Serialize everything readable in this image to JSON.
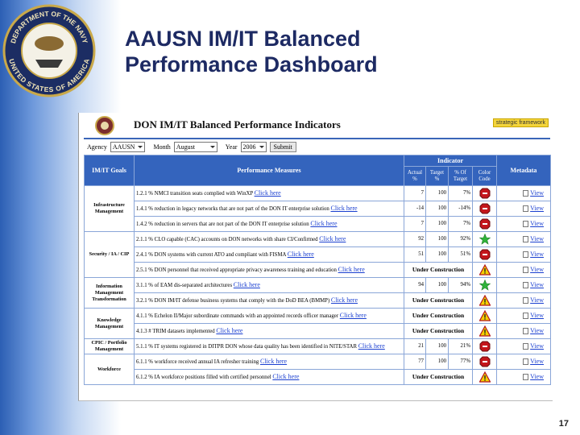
{
  "slide": {
    "title": "AAUSN IM/IT Balanced Performance Dashboard",
    "page_number": "17",
    "seal_text": [
      "DEPARTMENT OF THE NAVY",
      "UNITED STATES OF AMERICA"
    ]
  },
  "screen": {
    "heading": "DON IM/IT Balanced Performance Indicators",
    "framework_button": "strategic framework",
    "form": {
      "agency_label": "Agency",
      "agency": "AAUSN",
      "month_label": "Month",
      "month": "August",
      "year_label": "Year",
      "year": "2006",
      "submit": "Submit"
    },
    "table": {
      "headers": {
        "goals": "IM/IT Goals",
        "measures": "Performance Measures",
        "indicator": "Indicator",
        "actual": "Actual %",
        "target": "Target %",
        "percent_of_target": "% Of Target",
        "color_code": "Color Code",
        "metadata": "Metadata"
      },
      "goals": [
        {
          "label": "Infrastructure Management",
          "rows": [
            {
              "measure": "1.2.1 % NMCI transition seats complied with WinXP",
              "link": "Click here",
              "actual": "7",
              "target": "100",
              "percent": "7%",
              "status": "red",
              "metadata": "View"
            },
            {
              "measure": "1.4.1 % reduction in legacy networks that are not part of the DON IT enterprise solution",
              "link": "Click here",
              "actual": "-14",
              "target": "100",
              "percent": "-14%",
              "status": "red",
              "metadata": "View"
            },
            {
              "measure": "1.4.2 % reduction in servers that are not part of the DON IT enterprise solution",
              "link": "Click here",
              "actual": "7",
              "target": "100",
              "percent": "7%",
              "status": "red",
              "metadata": "View"
            }
          ]
        },
        {
          "label": "Security / IA / CIP",
          "rows": [
            {
              "measure": "2.1.1 % CLO capable (CAC) accounts on DON networks with share CI/Confirmed",
              "link": "Click here",
              "actual": "92",
              "target": "100",
              "percent": "92%",
              "status": "green",
              "metadata": "View"
            },
            {
              "measure": "2.4.1 % DON systems with current ATO and compliant with FISMA",
              "link": "Click here",
              "actual": "51",
              "target": "100",
              "percent": "51%",
              "status": "red",
              "metadata": "View"
            },
            {
              "measure": "2.5.1 % DON personnel that received appropriate privacy awareness training and education",
              "link": "Click here",
              "status_text": "Under Construction",
              "status": "warning",
              "metadata": "View"
            }
          ]
        },
        {
          "label": "Information Management Transformation",
          "rows": [
            {
              "measure": "3.1.1 % of EAM dis-separated architectures",
              "link": "Click here",
              "actual": "94",
              "target": "100",
              "percent": "94%",
              "status": "green",
              "metadata": "View"
            },
            {
              "measure": "3.2.1 % DON IM/IT defense business systems that comply with the DoD BEA (BMMP)",
              "link": "Click here",
              "status_text": "Under Construction",
              "status": "warning",
              "metadata": "View"
            }
          ]
        },
        {
          "label": "Knowledge Management",
          "rows": [
            {
              "measure": "4.1.1 % Echelon II/Major subordinate commands with an appointed records officer manager",
              "link": "Click here",
              "status_text": "Under Construction",
              "status": "warning",
              "metadata": "View"
            },
            {
              "measure": "4.1.3 # TRIM datasets implemented",
              "link": "Click here",
              "status_text": "Under Construction",
              "status": "warning",
              "metadata": "View"
            }
          ]
        },
        {
          "label": "CPIC / Portfolio Management",
          "rows": [
            {
              "measure": "5.1.1 % IT systems registered in DITPR DON whose data quality has been identified in NITE/STAR",
              "link": "Click here",
              "actual": "21",
              "target": "100",
              "percent": "21%",
              "status": "red",
              "metadata": "View"
            }
          ]
        },
        {
          "label": "Workforce",
          "rows": [
            {
              "measure": "6.1.1 % workforce received annual IA refresher training",
              "link": "Click here",
              "actual": "77",
              "target": "100",
              "percent": "77%",
              "status": "red",
              "metadata": "View"
            },
            {
              "measure": "6.1.2 % IA workforce positions filled with certified personnel",
              "link": "Click here",
              "status_text": "Under Construction",
              "status": "warning",
              "metadata": "View"
            }
          ]
        }
      ]
    }
  }
}
